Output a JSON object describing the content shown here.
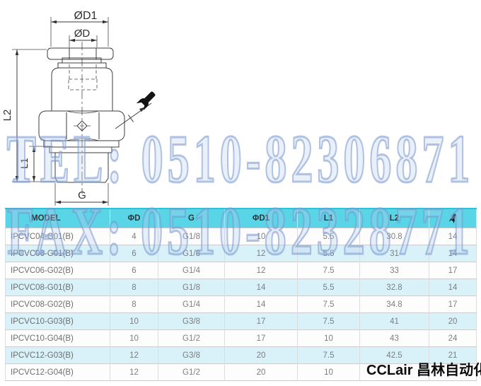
{
  "drawing": {
    "dimension_labels": {
      "outer_diameter": "ØD1",
      "tube_diameter": "ØD",
      "overall_length": "L2",
      "thread_length": "L1",
      "thread": "G"
    }
  },
  "watermark": {
    "tel": "TEL: 0510-82306871",
    "fax": "FAX: 0510-82328771"
  },
  "logo_text": "CCLair 昌林自动化",
  "table": {
    "headers": {
      "model": "MODEL",
      "d": "ΦD",
      "g": "G",
      "d1": "ΦD1",
      "l1": "L1",
      "l2": "L2"
    },
    "rows": [
      {
        "model": "IPCVC04-G01(B)",
        "d": "4",
        "g": "G1/8",
        "d1": "10",
        "l1": "5.5",
        "l2": "30.8",
        "wrench": "14"
      },
      {
        "model": "IPCVC06-G01(B)",
        "d": "6",
        "g": "G1/8",
        "d1": "12",
        "l1": "5.5",
        "l2": "31",
        "wrench": "14"
      },
      {
        "model": "IPCVC06-G02(B)",
        "d": "6",
        "g": "G1/4",
        "d1": "12",
        "l1": "7.5",
        "l2": "33",
        "wrench": "17"
      },
      {
        "model": "IPCVC08-G01(B)",
        "d": "8",
        "g": "G1/8",
        "d1": "14",
        "l1": "5.5",
        "l2": "32.8",
        "wrench": "14"
      },
      {
        "model": "IPCVC08-G02(B)",
        "d": "8",
        "g": "G1/4",
        "d1": "14",
        "l1": "7.5",
        "l2": "34.8",
        "wrench": "17"
      },
      {
        "model": "IPCVC10-G03(B)",
        "d": "10",
        "g": "G3/8",
        "d1": "17",
        "l1": "7.5",
        "l2": "41",
        "wrench": "20"
      },
      {
        "model": "IPCVC10-G04(B)",
        "d": "10",
        "g": "G1/2",
        "d1": "17",
        "l1": "10",
        "l2": "43",
        "wrench": "24"
      },
      {
        "model": "IPCVC12-G03(B)",
        "d": "12",
        "g": "G3/8",
        "d1": "20",
        "l1": "7.5",
        "l2": "42.5",
        "wrench": "21"
      },
      {
        "model": "IPCVC12-G04(B)",
        "d": "12",
        "g": "G1/2",
        "d1": "20",
        "l1": "10",
        "l2": "",
        "wrench": ""
      }
    ]
  },
  "colors": {
    "header_bg": "#59d5e7",
    "header_accent_line": "#2cc3d8",
    "row_alt_bg": "#d9f1f9",
    "watermark_blue": "#7696cd",
    "drawing_line": "#3c3c3c"
  }
}
